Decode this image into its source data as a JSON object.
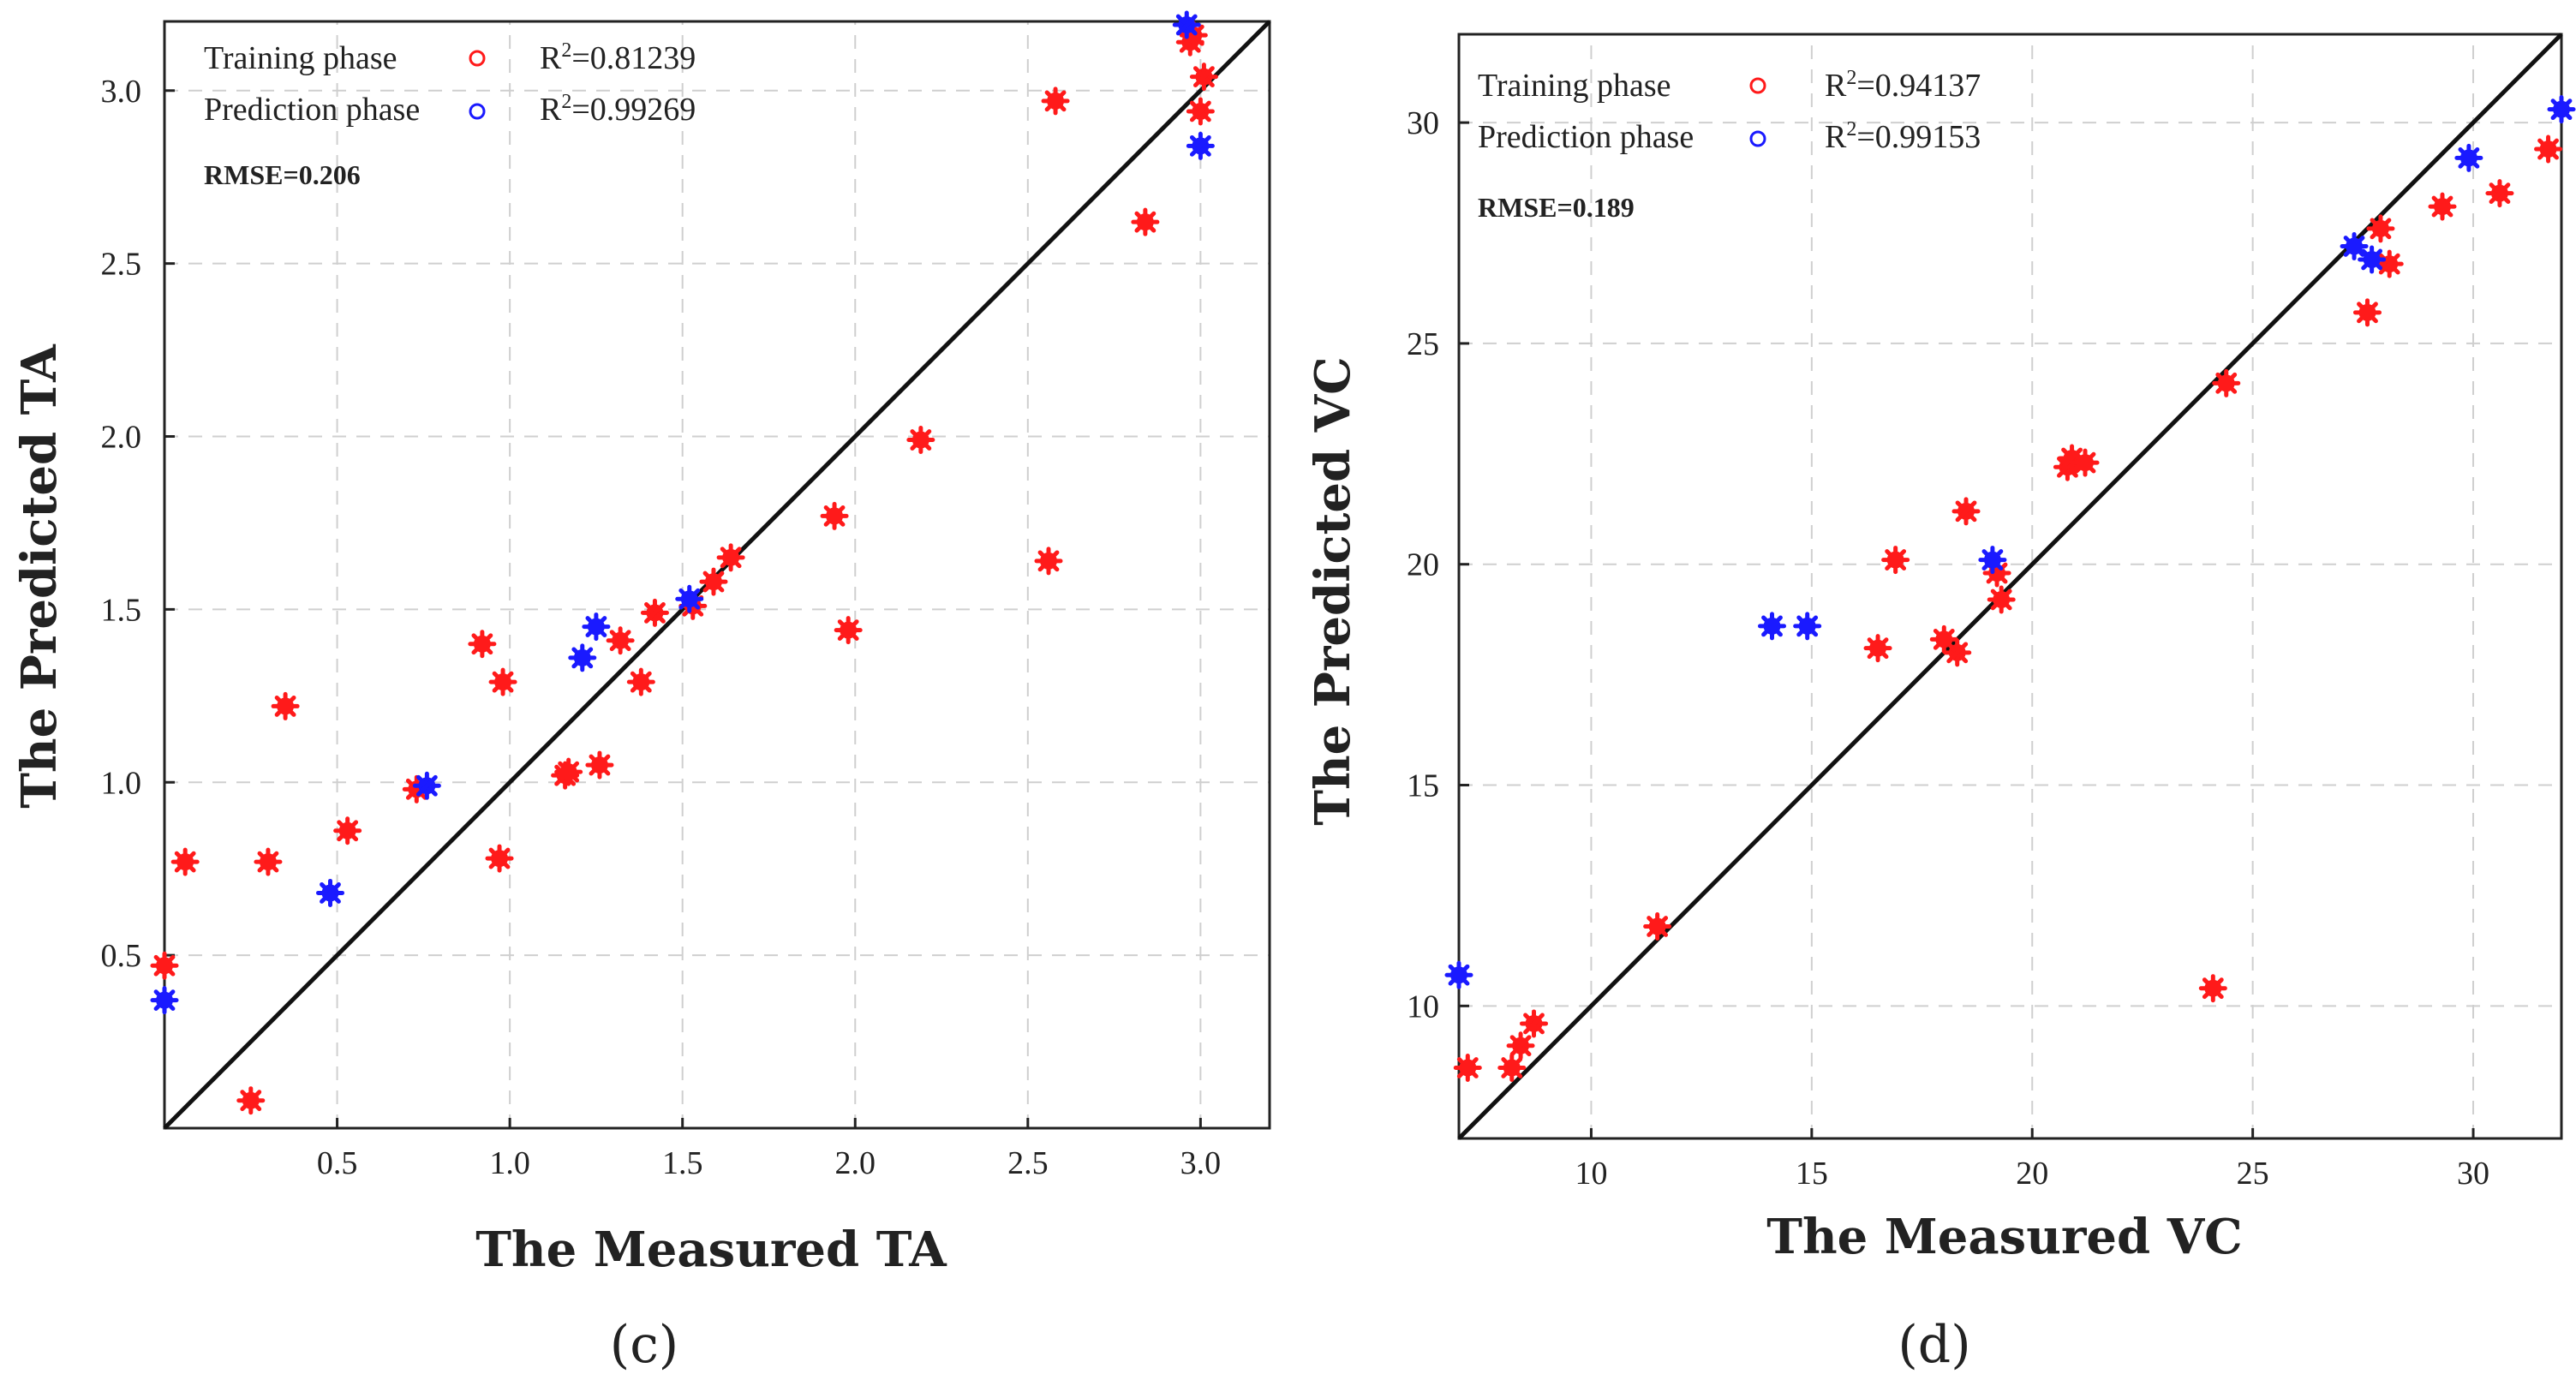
{
  "chart_data": [
    {
      "type": "scatter",
      "panel_label": "(c)",
      "xlabel": "The Measured TA",
      "ylabel": "The Predicted TA",
      "xlim": [
        0,
        3.2
      ],
      "ylim": [
        0,
        3.2
      ],
      "xticks": [
        0.5,
        1.0,
        1.5,
        2.0,
        2.5,
        3.0
      ],
      "yticks": [
        0.5,
        1.0,
        1.5,
        2.0,
        2.5,
        3.0
      ],
      "xtick_labels": [
        "0.5",
        "1.0",
        "1.5",
        "2.0",
        "2.5",
        "3.0"
      ],
      "ytick_labels": [
        "0.5",
        "1.0",
        "1.5",
        "2.0",
        "2.5",
        "3.0"
      ],
      "grid": true,
      "reference_line": "y = x",
      "legend": [
        {
          "label": "Training phase",
          "color": "#ff1a1a",
          "stat_symbol": "R",
          "stat_sup": "2",
          "stat_value": "=0.81239"
        },
        {
          "label": "Prediction phase",
          "color": "#1a1aff",
          "stat_symbol": "R",
          "stat_sup": "2",
          "stat_value": "=0.99269"
        }
      ],
      "annotation": "RMSE=0.206",
      "series": [
        {
          "name": "Training phase",
          "color": "#ff1a1a",
          "points": [
            [
              0.0,
              0.47
            ],
            [
              0.06,
              0.77
            ],
            [
              0.25,
              0.08
            ],
            [
              0.3,
              0.77
            ],
            [
              0.35,
              1.22
            ],
            [
              0.53,
              0.86
            ],
            [
              0.73,
              0.98
            ],
            [
              0.92,
              1.4
            ],
            [
              0.97,
              0.78
            ],
            [
              0.98,
              1.29
            ],
            [
              1.16,
              1.02
            ],
            [
              1.17,
              1.03
            ],
            [
              1.26,
              1.05
            ],
            [
              1.32,
              1.41
            ],
            [
              1.38,
              1.29
            ],
            [
              1.42,
              1.49
            ],
            [
              1.53,
              1.51
            ],
            [
              1.59,
              1.58
            ],
            [
              1.64,
              1.65
            ],
            [
              1.94,
              1.77
            ],
            [
              1.98,
              1.44
            ],
            [
              2.19,
              1.99
            ],
            [
              2.56,
              1.64
            ],
            [
              2.58,
              2.97
            ],
            [
              2.84,
              2.62
            ],
            [
              2.97,
              3.14
            ],
            [
              2.98,
              3.16
            ],
            [
              3.0,
              2.94
            ],
            [
              3.01,
              3.04
            ]
          ]
        },
        {
          "name": "Prediction phase",
          "color": "#1a1aff",
          "points": [
            [
              0.0,
              0.37
            ],
            [
              0.48,
              0.68
            ],
            [
              0.76,
              0.99
            ],
            [
              1.21,
              1.36
            ],
            [
              1.25,
              1.45
            ],
            [
              1.52,
              1.53
            ],
            [
              2.96,
              3.19
            ],
            [
              3.0,
              2.84
            ]
          ]
        }
      ]
    },
    {
      "type": "scatter",
      "panel_label": "(d)",
      "xlabel": "The Measured VC",
      "ylabel": "The Predicted VC",
      "xlim": [
        7,
        32
      ],
      "ylim": [
        7,
        32
      ],
      "xticks": [
        10,
        15,
        20,
        25,
        30
      ],
      "yticks": [
        10,
        15,
        20,
        25,
        30
      ],
      "xtick_labels": [
        "10",
        "15",
        "20",
        "25",
        "30"
      ],
      "ytick_labels": [
        "10",
        "15",
        "20",
        "25",
        "30"
      ],
      "grid": true,
      "reference_line": "y = x",
      "legend": [
        {
          "label": "Training phase",
          "color": "#ff1a1a",
          "stat_symbol": "R",
          "stat_sup": "2",
          "stat_value": "=0.94137"
        },
        {
          "label": "Prediction phase",
          "color": "#1a1aff",
          "stat_symbol": "R",
          "stat_sup": "2",
          "stat_value": "=0.99153"
        }
      ],
      "annotation": "RMSE=0.189",
      "series": [
        {
          "name": "Training phase",
          "color": "#ff1a1a",
          "points": [
            [
              7.2,
              8.6
            ],
            [
              8.2,
              8.6
            ],
            [
              8.4,
              9.1
            ],
            [
              8.7,
              9.6
            ],
            [
              11.5,
              11.8
            ],
            [
              16.5,
              18.1
            ],
            [
              16.9,
              20.1
            ],
            [
              18.0,
              18.3
            ],
            [
              18.3,
              18.0
            ],
            [
              18.5,
              21.2
            ],
            [
              19.2,
              19.8
            ],
            [
              19.3,
              19.2
            ],
            [
              20.8,
              22.2
            ],
            [
              20.9,
              22.4
            ],
            [
              21.2,
              22.3
            ],
            [
              24.1,
              10.4
            ],
            [
              24.4,
              24.1
            ],
            [
              27.6,
              25.7
            ],
            [
              27.9,
              27.6
            ],
            [
              28.1,
              26.8
            ],
            [
              29.3,
              28.1
            ],
            [
              30.6,
              28.4
            ],
            [
              31.7,
              29.4
            ]
          ]
        },
        {
          "name": "Prediction phase",
          "color": "#1a1aff",
          "points": [
            [
              7.0,
              10.7
            ],
            [
              14.1,
              18.6
            ],
            [
              14.9,
              18.6
            ],
            [
              19.1,
              20.1
            ],
            [
              27.3,
              27.2
            ],
            [
              27.7,
              26.9
            ],
            [
              29.9,
              29.2
            ],
            [
              32.0,
              30.3
            ]
          ]
        }
      ]
    }
  ]
}
